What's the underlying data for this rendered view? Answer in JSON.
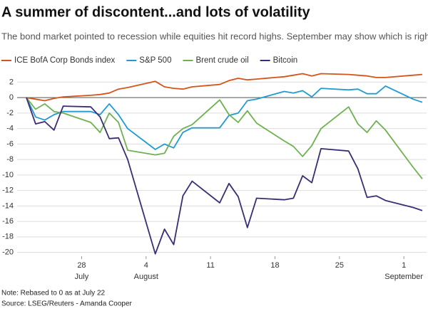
{
  "chart_data": {
    "type": "line",
    "title": "A summer of discontent...and lots of volatility",
    "subtitle": "The bond market pointed to recession while equities hit record highs. September may show which is right",
    "note": "Note: Rebased to 0 as at July 22",
    "source": "Source: LSEG/Reuters - Amanda Cooper",
    "x": [
      "July 22",
      "July 23",
      "July 24",
      "July 25",
      "July 26",
      "July 29",
      "July 30",
      "July 31",
      "August 1",
      "August 2",
      "August 5",
      "August 6",
      "August 7",
      "August 8",
      "August 9",
      "August 12",
      "August 13",
      "August 14",
      "August 15",
      "August 16",
      "August 19",
      "August 20",
      "August 21",
      "August 22",
      "August 23",
      "August 26",
      "August 27",
      "August 28",
      "August 29",
      "August 30",
      "September 2",
      "September 3"
    ],
    "xlim": [
      "July 22",
      "September 3"
    ],
    "xticks": [
      {
        "value": "July 28",
        "label": "28",
        "month": "July"
      },
      {
        "value": "August 4",
        "label": "4",
        "month": "August"
      },
      {
        "value": "August 11",
        "label": "11"
      },
      {
        "value": "August 18",
        "label": "18"
      },
      {
        "value": "August 25",
        "label": "25"
      },
      {
        "value": "September 1",
        "label": "1",
        "month": "September"
      }
    ],
    "ylim": [
      -20.5,
      2.5
    ],
    "yticks": [
      -20,
      -18,
      -16,
      -14,
      -12,
      -10,
      -8,
      -6,
      -4,
      -2,
      0,
      2
    ],
    "grid": true,
    "legend": "top",
    "series": [
      {
        "name": "ICE BofA Corp Bonds index",
        "color": "#d4541c",
        "values": [
          0,
          -0.2,
          -0.4,
          -0.1,
          0.1,
          0.3,
          0.4,
          0.6,
          1.1,
          1.3,
          2.1,
          1.4,
          1.2,
          1.1,
          1.4,
          1.7,
          2.2,
          2.5,
          2.3,
          2.4,
          2.7,
          2.9,
          3.1,
          2.8,
          3.1,
          3.0,
          2.9,
          2.8,
          2.6,
          2.6,
          2.9,
          3.0
        ]
      },
      {
        "name": "S&P 500",
        "color": "#1f9bd2",
        "values": [
          0,
          -2.5,
          -2.9,
          -2.2,
          -1.8,
          -1.8,
          -2.2,
          -0.8,
          -2.2,
          -4.0,
          -6.7,
          -6.0,
          -6.5,
          -4.5,
          -3.9,
          -3.9,
          -2.3,
          -2.0,
          -0.4,
          -0.2,
          0.8,
          0.6,
          0.9,
          0.1,
          1.2,
          1.0,
          1.1,
          0.5,
          0.5,
          1.5,
          -0.2,
          -0.6
        ]
      },
      {
        "name": "Brent crude oil",
        "color": "#6db24f",
        "values": [
          0,
          -1.5,
          -0.8,
          -1.8,
          -2.0,
          -3.2,
          -4.5,
          -2.0,
          -3.2,
          -6.8,
          -7.4,
          -7.2,
          -5.0,
          -4.0,
          -3.5,
          -0.3,
          -2.2,
          -3.2,
          -1.7,
          -3.3,
          -5.6,
          -6.3,
          -7.6,
          -6.2,
          -4.0,
          -1.2,
          -3.4,
          -4.5,
          -3.0,
          -4.2,
          -9.0,
          -10.5
        ]
      },
      {
        "name": "Bitcoin",
        "color": "#3a2d78",
        "values": [
          0,
          -3.4,
          -3.1,
          -4.2,
          -1.1,
          -1.2,
          -2.5,
          -5.3,
          -5.2,
          -8.0,
          -20.2,
          -17.0,
          -19.0,
          -12.7,
          -10.8,
          -13.6,
          -11.1,
          -12.8,
          -16.8,
          -13.0,
          -13.2,
          -13.0,
          -10.1,
          -11.0,
          -6.6,
          -6.9,
          -9.2,
          -12.9,
          -12.7,
          -13.3,
          -14.2,
          -14.6
        ]
      }
    ]
  }
}
